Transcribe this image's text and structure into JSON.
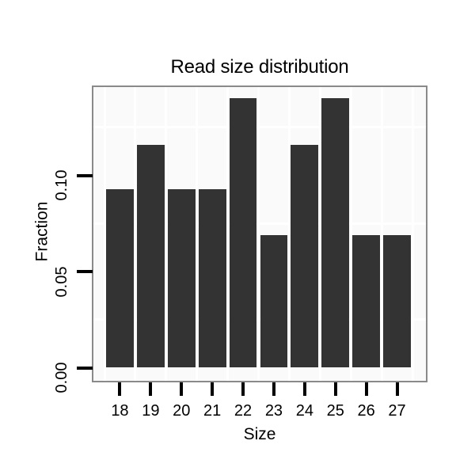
{
  "chart_data": {
    "type": "bar",
    "title": "Read size distribution",
    "xlabel": "Size",
    "ylabel": "Fraction",
    "categories": [
      "18",
      "19",
      "20",
      "21",
      "22",
      "23",
      "24",
      "25",
      "26",
      "27"
    ],
    "values": [
      0.093,
      0.116,
      0.093,
      0.093,
      0.14,
      0.069,
      0.116,
      0.14,
      0.069,
      0.069
    ],
    "yticks": {
      "values": [
        0.0,
        0.05,
        0.1
      ],
      "labels": [
        "0.00",
        "0.05",
        "0.10"
      ]
    },
    "ylim": [
      -0.0066,
      0.1464
    ],
    "minor_gridlines_y": [
      0.025,
      0.075,
      0.125
    ],
    "grid": "on",
    "legend": "none",
    "colors": {
      "bar": "#333333",
      "panel_bg": "#fafafa",
      "gridline": "#ffffff",
      "panel_border": "#8a8a8a",
      "tick": "#000000",
      "text": "#000000"
    }
  }
}
